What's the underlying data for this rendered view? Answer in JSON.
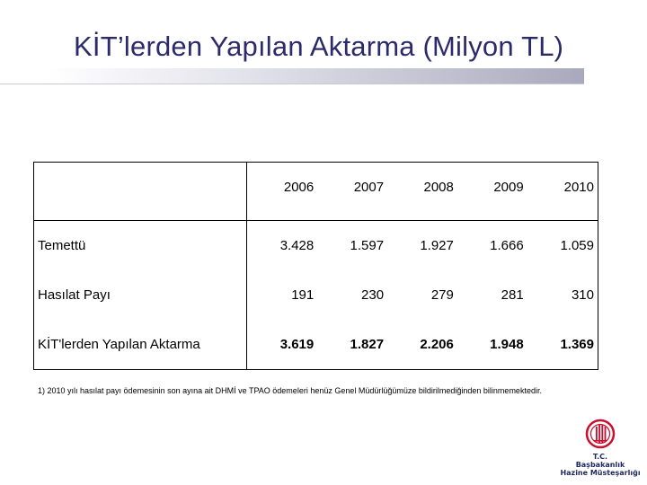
{
  "slide": {
    "title": "KİT’lerden Yapılan Aktarma (Milyon TL)"
  },
  "table": {
    "years": [
      "2006",
      "2007",
      "2008",
      "2009",
      "2010"
    ],
    "rows": [
      {
        "label": "Temettü",
        "values": [
          "3.428",
          "1.597",
          "1.927",
          "1.666",
          "1.059"
        ]
      },
      {
        "label": "Hasılat Payı",
        "values": [
          "191",
          "230",
          "279",
          "281",
          "310"
        ]
      },
      {
        "label": "KİT'lerden Yapılan Aktarma",
        "values": [
          "3.619",
          "1.827",
          "2.206",
          "1.948",
          "1.369"
        ]
      }
    ]
  },
  "footnote": "1) 2010 yılı hasılat payı ödemesinin son ayına ait DHMİ ve TPAO ödemeleri henüz Genel Müdürlüğümüze bildirilmediğinden bilinmemektedir.",
  "logo": {
    "line1": "T.C.",
    "line2": "Başbakanlık",
    "line3": "Hazine Müsteşarlığı",
    "color": "#c8102e"
  }
}
